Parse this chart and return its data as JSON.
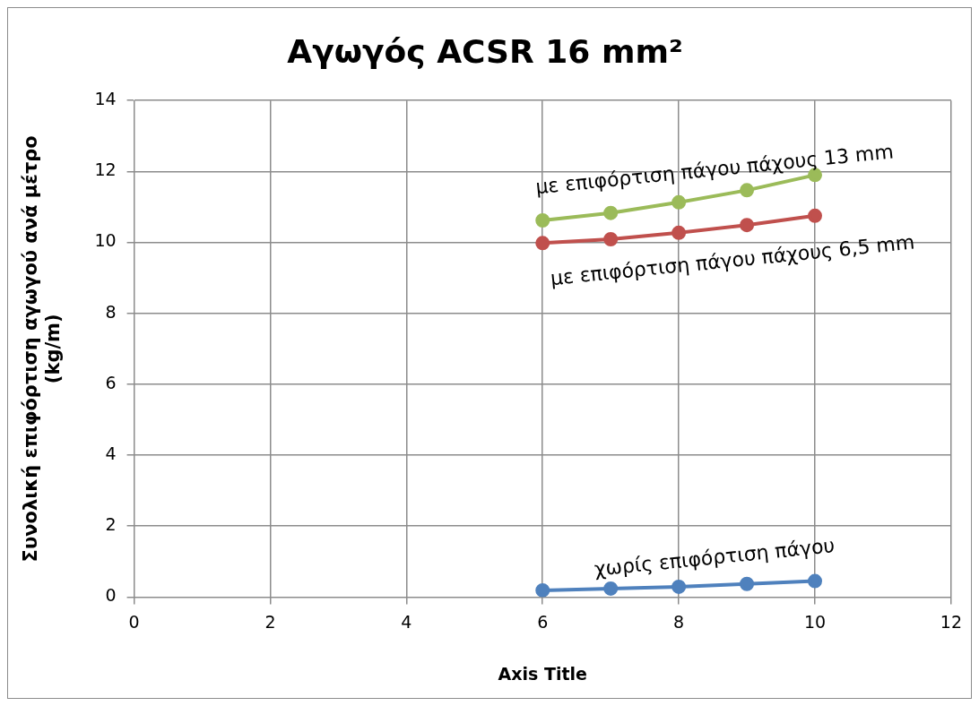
{
  "chart_data": {
    "type": "line",
    "title": "Αγωγός ACSR 16 mm²",
    "xlabel": "Axis Title",
    "ylabel": "Συνολική επιφόρτιση αγωγού ανά μέτρο (kg/m)",
    "x": [
      6,
      7,
      8,
      9,
      10
    ],
    "series": [
      {
        "name": "χωρίς επιφόρτιση πάγου",
        "color": "#4f81bd",
        "values": [
          0.19,
          0.24,
          0.29,
          0.37,
          0.45
        ]
      },
      {
        "name": "με επιφόρτιση πάγου πάχους 6,5 mm",
        "color": "#c0504d",
        "values": [
          9.98,
          10.09,
          10.27,
          10.49,
          10.75
        ]
      },
      {
        "name": "με επιφόρτιση πάγου πάχους 13 mm",
        "color": "#9bbb59",
        "values": [
          10.62,
          10.83,
          11.13,
          11.47,
          11.9
        ]
      }
    ],
    "xlim": [
      0,
      12
    ],
    "xticks": [
      0,
      2,
      4,
      6,
      8,
      10,
      12
    ],
    "ylim": [
      0,
      14
    ],
    "yticks": [
      0,
      2,
      4,
      6,
      8,
      10,
      12,
      14
    ],
    "grid": true,
    "legend": false,
    "marker": "circle",
    "line_style": "solid"
  }
}
